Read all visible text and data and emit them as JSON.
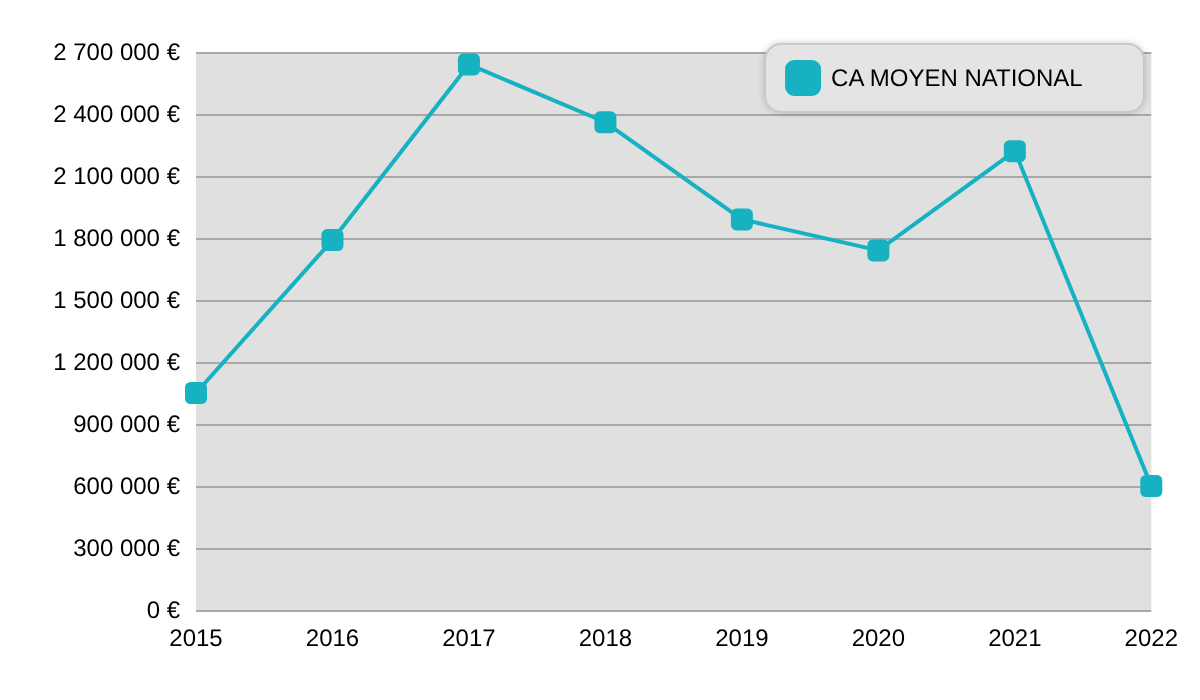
{
  "chart_data": {
    "type": "line",
    "categories": [
      "2015",
      "2016",
      "2017",
      "2018",
      "2019",
      "2020",
      "2021",
      "2022"
    ],
    "series": [
      {
        "name": "CA MOYEN NATIONAL",
        "color": "#17b2c2",
        "values": [
          1050000,
          1790000,
          2640000,
          2360000,
          1890000,
          1740000,
          2220000,
          600000
        ]
      }
    ],
    "ylim": [
      0,
      2700000
    ],
    "yticks": [
      {
        "value": 0,
        "label": "0 €"
      },
      {
        "value": 300000,
        "label": "300 000 €"
      },
      {
        "value": 600000,
        "label": "600 000 €"
      },
      {
        "value": 900000,
        "label": "900 000 €"
      },
      {
        "value": 1200000,
        "label": "1 200 000 €"
      },
      {
        "value": 1500000,
        "label": "1 500 000 €"
      },
      {
        "value": 1800000,
        "label": "1 800 000 €"
      },
      {
        "value": 2100000,
        "label": "2 100 000 €"
      },
      {
        "value": 2400000,
        "label": "2 400 000 €"
      },
      {
        "value": 2700000,
        "label": "2 700 000 €"
      }
    ],
    "grid": "y",
    "legend": "top right",
    "marker": "square",
    "line_style": "solid"
  }
}
